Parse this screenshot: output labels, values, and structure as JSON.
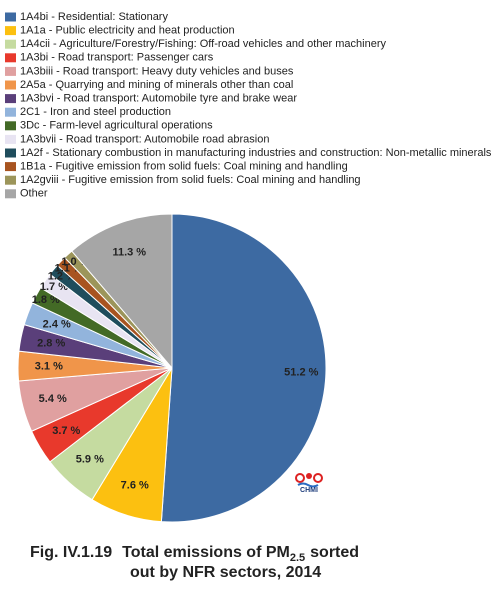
{
  "chart_data": {
    "type": "pie",
    "title": [
      "Fig. IV.1.19",
      "Total emissions of PM",
      "2.5",
      "sorted",
      "out by NFR sectors, 2014"
    ],
    "logo": "CHMI",
    "categories": [
      "1A4bi - Residential: Stationary",
      "1A1a - Public electricity and heat production",
      "1A4cii - Agriculture/Forestry/Fishing: Off-road vehicles and other machinery",
      "1A3bi - Road transport: Passenger cars",
      "1A3biii - Road transport: Heavy duty vehicles and buses",
      "2A5a - Quarrying and mining of minerals other than coal",
      "1A3bvi - Road transport: Automobile tyre and brake wear",
      "2C1 - Iron and steel production",
      "3Dc - Farm-level agricultural operations",
      "1A3bvii - Road transport: Automobile road abrasion",
      "1A2f - Stationary combustion in manufacturing industries and construction: Non-metallic minerals",
      "1B1a - Fugitive emission from solid fuels: Coal mining and handling",
      "1A2gviii - Fugitive emission from solid fuels: Coal mining and handling",
      "Other"
    ],
    "values": [
      51.2,
      7.6,
      5.9,
      3.7,
      5.4,
      3.1,
      2.8,
      2.4,
      1.8,
      1.7,
      1.2,
      1.1,
      1.0,
      11.3
    ],
    "value_labels": [
      "51.2 %",
      "7.6 %",
      "5.9 %",
      "3.7 %",
      "5.4 %",
      "3.1 %",
      "2.8 %",
      "2.4 %",
      "1.8 %",
      "1.7 %",
      "1.2 %",
      "1.1 %",
      "1.0 %",
      "11.3 %"
    ],
    "colors": [
      "#3d6aa2",
      "#fcc010",
      "#c5dba0",
      "#e8392c",
      "#e0a0a0",
      "#f0954a",
      "#5a3f7a",
      "#92b4dc",
      "#436a26",
      "#e8e4f2",
      "#1f4d5c",
      "#a85420",
      "#9c955a",
      "#a6a6a6"
    ]
  }
}
